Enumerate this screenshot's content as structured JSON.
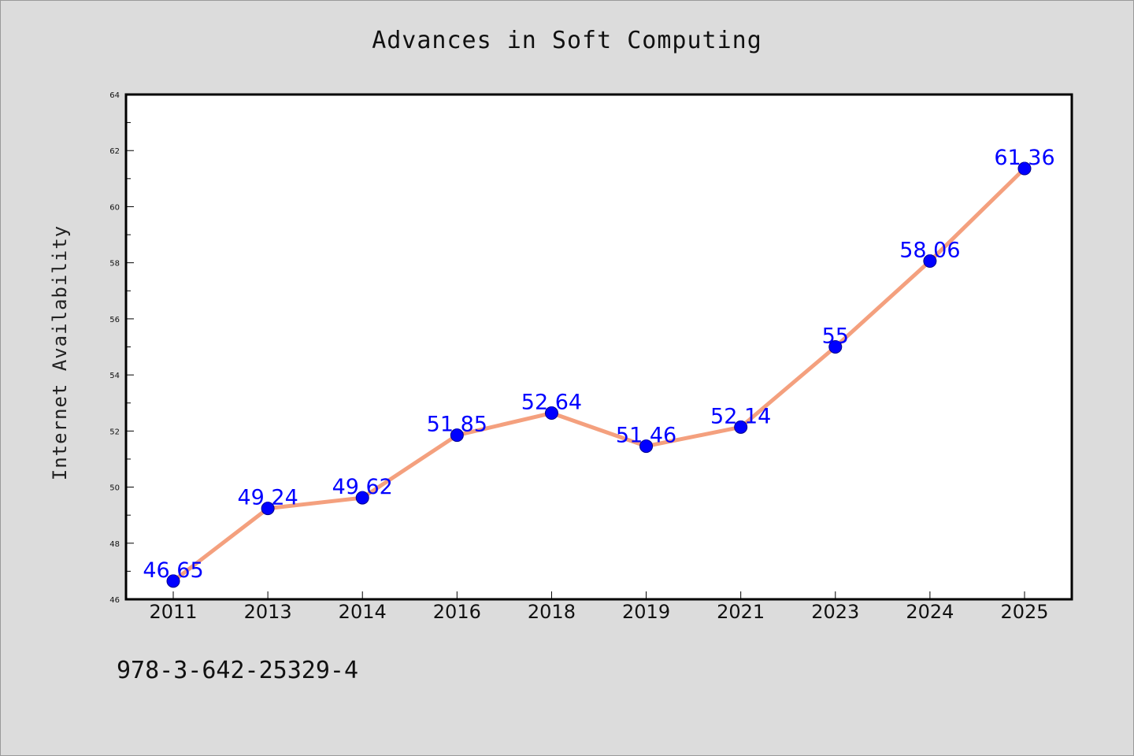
{
  "title": "Advances in Soft Computing",
  "footer_text": "978-3-642-25329-4",
  "chart_data": {
    "type": "line",
    "title": "Advances in Soft Computing",
    "xlabel": "",
    "ylabel": "Internet Availability",
    "categories": [
      "2011",
      "2013",
      "2014",
      "2016",
      "2018",
      "2019",
      "2021",
      "2023",
      "2024",
      "2025"
    ],
    "series": [
      {
        "values": [
          46.65,
          49.24,
          49.62,
          51.85,
          52.64,
          51.46,
          52.14,
          55,
          58.06,
          61.36
        ],
        "labels": [
          "46.65",
          "49.24",
          "49.62",
          "51.85",
          "52.64",
          "51.46",
          "52.14",
          "55",
          "58.06",
          "61.36"
        ],
        "line_color": "#f4a07e",
        "marker_color": "#0000ff"
      }
    ],
    "ylim": [
      46,
      64
    ],
    "y_ticks": [
      "46",
      "48",
      "50",
      "52",
      "54",
      "56",
      "58",
      "60",
      "62",
      "64"
    ],
    "grid": false,
    "legend": "none",
    "background": "#ffffff",
    "figure_background": "#dcdcdc"
  }
}
